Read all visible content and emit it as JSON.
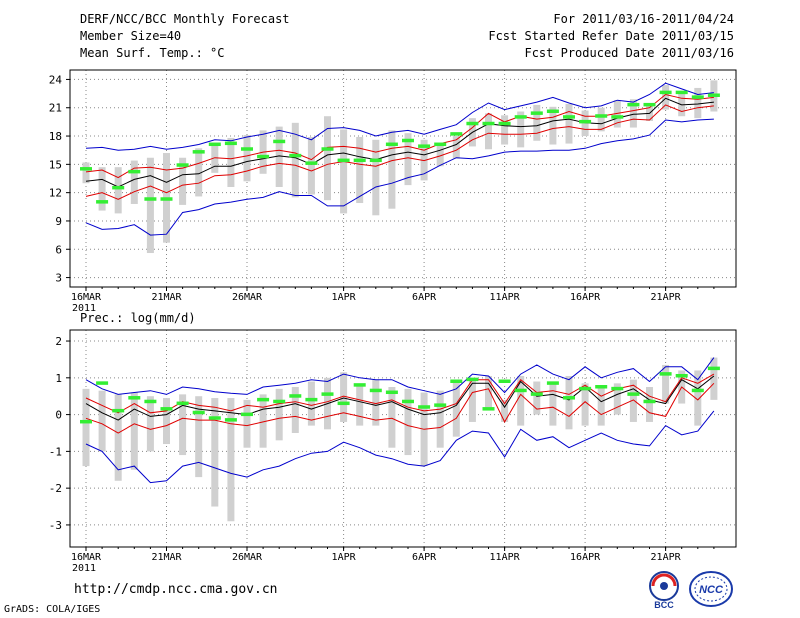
{
  "header": {
    "title": "DERF/NCC/BCC Monthly Forecast",
    "member": "Member Size=40",
    "variable": "Mean Surf. Temp.: °C",
    "period": "For 2011/03/16-2011/04/24",
    "fcst_started": "Fcst Started Refer Date 2011/03/15",
    "fcst_produced": "Fcst Produced Date 2011/03/16"
  },
  "footer": {
    "url": "http://cmdp.ncc.cma.gov.cn",
    "credit": "GrADS: COLA/IGES",
    "logo_left_text": "BCC",
    "logo_right_text": "NCC"
  },
  "colors": {
    "ensemble_mean": "#000000",
    "spread": "#e00000",
    "extreme": "#0000cc",
    "observed": "#33ee33",
    "box": "#d0d0d0",
    "grid": "#888888"
  },
  "chart_data": [
    {
      "type": "line",
      "title": "Mean Surf. Temp.: °C",
      "ylabel": "°C",
      "ylim": [
        2,
        25
      ],
      "yticks": [
        3,
        6,
        9,
        12,
        15,
        18,
        21,
        24
      ],
      "x_tick_labels": [
        "16MAR",
        "21MAR",
        "26MAR",
        "1APR",
        "6APR",
        "11APR",
        "16APR",
        "21APR"
      ],
      "x_tick_index": [
        0,
        5,
        10,
        16,
        21,
        26,
        31,
        36
      ],
      "x_year_label": "2011",
      "days": 40,
      "series": [
        {
          "name": "max",
          "values": [
            16.7,
            16.8,
            16.5,
            16.6,
            16.9,
            16.6,
            16.8,
            17.1,
            17.6,
            17.5,
            17.9,
            18.2,
            18.6,
            18.2,
            17.6,
            18.8,
            18.9,
            18.6,
            18.0,
            18.4,
            18.6,
            18.2,
            18.7,
            19.2,
            20.5,
            21.5,
            20.8,
            21.2,
            21.6,
            22.1,
            21.5,
            21.0,
            21.2,
            21.8,
            21.6,
            22.4,
            23.6,
            23.0,
            22.4,
            22.6
          ]
        },
        {
          "name": "upper",
          "values": [
            14.2,
            14.4,
            13.6,
            14.6,
            14.7,
            14.4,
            14.6,
            15.1,
            15.7,
            15.6,
            15.9,
            16.3,
            16.5,
            16.2,
            15.5,
            16.8,
            16.9,
            16.7,
            16.3,
            16.7,
            16.9,
            16.5,
            17.2,
            17.6,
            18.9,
            20.4,
            19.5,
            20.1,
            19.8,
            20.0,
            20.6,
            20.1,
            20.1,
            20.4,
            20.7,
            21.0,
            22.4,
            22.0,
            21.9,
            22.1
          ]
        },
        {
          "name": "mean",
          "values": [
            13.2,
            13.4,
            12.6,
            13.4,
            13.8,
            13.1,
            13.9,
            14.0,
            14.8,
            14.8,
            15.3,
            15.6,
            15.9,
            15.7,
            15.0,
            16.0,
            16.2,
            15.8,
            15.5,
            16.0,
            16.3,
            16.0,
            16.5,
            17.1,
            18.4,
            19.3,
            19.1,
            19.0,
            19.1,
            19.6,
            19.8,
            19.4,
            19.3,
            19.9,
            20.3,
            20.4,
            22.0,
            21.3,
            21.4,
            21.6
          ]
        },
        {
          "name": "lower",
          "values": [
            11.6,
            12.0,
            11.3,
            12.1,
            12.7,
            12.0,
            12.8,
            13.0,
            13.8,
            13.9,
            14.3,
            14.8,
            15.1,
            14.9,
            14.3,
            15.0,
            15.3,
            15.0,
            14.8,
            15.4,
            15.7,
            15.4,
            15.9,
            16.5,
            17.6,
            18.3,
            18.2,
            18.2,
            18.3,
            18.8,
            19.0,
            18.7,
            18.7,
            19.4,
            19.8,
            19.7,
            21.3,
            20.6,
            21.0,
            21.2
          ]
        },
        {
          "name": "min",
          "values": [
            8.8,
            8.1,
            8.2,
            8.6,
            7.5,
            7.6,
            9.9,
            10.2,
            10.8,
            11.0,
            11.3,
            11.5,
            12.1,
            11.7,
            11.7,
            10.6,
            10.6,
            11.6,
            12.6,
            13.0,
            13.6,
            14.0,
            14.9,
            15.7,
            15.6,
            15.9,
            16.3,
            16.4,
            16.4,
            16.5,
            16.5,
            16.7,
            17.2,
            17.5,
            17.7,
            18.1,
            19.7,
            19.5,
            19.7,
            19.8
          ]
        }
      ],
      "boxes": [
        [
          13.0,
          15.2
        ],
        [
          10.1,
          14.7
        ],
        [
          9.8,
          14.7
        ],
        [
          10.8,
          15.4
        ],
        [
          5.6,
          15.7
        ],
        [
          6.7,
          16.2
        ],
        [
          10.7,
          15.7
        ],
        [
          11.6,
          16.7
        ],
        [
          14.1,
          17.2
        ],
        [
          12.6,
          17.8
        ],
        [
          13.2,
          18.1
        ],
        [
          14.0,
          18.6
        ],
        [
          12.6,
          19.0
        ],
        [
          11.5,
          19.4
        ],
        [
          11.8,
          17.9
        ],
        [
          11.2,
          20.1
        ],
        [
          9.8,
          18.7
        ],
        [
          10.9,
          17.9
        ],
        [
          9.6,
          17.6
        ],
        [
          10.3,
          18.6
        ],
        [
          12.8,
          18.3
        ],
        [
          13.3,
          17.6
        ],
        [
          14.8,
          17.2
        ],
        [
          15.6,
          18.0
        ],
        [
          16.9,
          19.9
        ],
        [
          16.6,
          20.4
        ],
        [
          17.1,
          20.2
        ],
        [
          16.8,
          20.6
        ],
        [
          17.5,
          21.3
        ],
        [
          17.1,
          21.1
        ],
        [
          17.2,
          21.4
        ],
        [
          18.0,
          20.7
        ],
        [
          18.5,
          21.0
        ],
        [
          18.9,
          21.8
        ],
        [
          18.9,
          21.9
        ],
        [
          19.6,
          21.4
        ],
        [
          20.8,
          23.4
        ],
        [
          20.1,
          22.7
        ],
        [
          19.9,
          23.1
        ],
        [
          20.6,
          23.9
        ]
      ],
      "observed": [
        14.5,
        11.0,
        12.5,
        14.2,
        11.3,
        11.3,
        14.9,
        16.3,
        17.1,
        17.2,
        16.6,
        15.8,
        17.4,
        15.9,
        15.1,
        16.6,
        15.4,
        15.4,
        15.4,
        17.1,
        17.5,
        16.9,
        17.1,
        18.2,
        19.3,
        19.3,
        19.3,
        20.0,
        20.4,
        20.6,
        20.0,
        19.5,
        20.1,
        20.0,
        21.3,
        21.3,
        22.6,
        22.6,
        22.1,
        22.3
      ]
    },
    {
      "type": "line",
      "title": "Prec.: log(mm/d)",
      "ylabel": "log(mm/d)",
      "ylim": [
        -3.6,
        2.3
      ],
      "yticks": [
        -3,
        -2,
        -1,
        0,
        1,
        2
      ],
      "x_tick_labels": [
        "16MAR",
        "21MAR",
        "26MAR",
        "1APR",
        "6APR",
        "11APR",
        "16APR",
        "21APR"
      ],
      "x_tick_index": [
        0,
        5,
        10,
        16,
        21,
        26,
        31,
        36
      ],
      "x_year_label": "2011",
      "days": 40,
      "series": [
        {
          "name": "max",
          "values": [
            0.95,
            0.7,
            0.55,
            0.6,
            0.65,
            0.55,
            0.75,
            0.7,
            0.62,
            0.58,
            0.55,
            0.75,
            0.8,
            0.85,
            0.95,
            0.9,
            1.1,
            1.0,
            0.95,
            0.95,
            0.75,
            0.65,
            0.55,
            0.7,
            1.1,
            1.05,
            0.6,
            1.1,
            1.35,
            1.1,
            0.95,
            1.3,
            1.0,
            1.15,
            1.25,
            0.9,
            1.3,
            1.3,
            0.95,
            1.55
          ]
        },
        {
          "name": "upper",
          "values": [
            0.45,
            0.25,
            0.05,
            0.3,
            0.05,
            0.1,
            0.35,
            0.25,
            0.2,
            0.1,
            0.25,
            0.2,
            0.3,
            0.35,
            0.25,
            0.35,
            0.5,
            0.4,
            0.3,
            0.4,
            0.2,
            0.1,
            0.15,
            0.3,
            0.95,
            0.95,
            0.3,
            0.95,
            0.6,
            0.65,
            0.55,
            0.8,
            0.5,
            0.7,
            0.8,
            0.5,
            0.35,
            1.0,
            0.85,
            1.1
          ]
        },
        {
          "name": "mean",
          "values": [
            0.3,
            0.05,
            -0.15,
            0.15,
            -0.05,
            0.0,
            0.25,
            0.15,
            0.1,
            0.05,
            0.0,
            0.15,
            0.2,
            0.3,
            0.15,
            0.3,
            0.45,
            0.35,
            0.25,
            0.35,
            0.15,
            0.0,
            0.05,
            0.25,
            0.85,
            0.85,
            0.2,
            0.9,
            0.5,
            0.55,
            0.4,
            0.75,
            0.35,
            0.55,
            0.7,
            0.4,
            0.3,
            0.95,
            0.7,
            1.05
          ]
        },
        {
          "name": "lower",
          "values": [
            -0.1,
            -0.25,
            -0.5,
            -0.25,
            -0.4,
            -0.3,
            -0.1,
            -0.15,
            -0.15,
            -0.25,
            -0.3,
            -0.2,
            -0.1,
            -0.05,
            -0.15,
            -0.05,
            0.05,
            -0.05,
            -0.15,
            -0.1,
            -0.3,
            -0.4,
            -0.35,
            -0.1,
            0.6,
            0.7,
            -0.2,
            0.55,
            0.15,
            0.2,
            -0.05,
            0.35,
            0.0,
            0.2,
            0.4,
            0.05,
            -0.05,
            0.75,
            0.4,
            0.85
          ]
        },
        {
          "name": "min",
          "values": [
            -0.8,
            -1.0,
            -1.5,
            -1.4,
            -1.85,
            -1.8,
            -1.4,
            -1.3,
            -1.45,
            -1.6,
            -1.7,
            -1.5,
            -1.4,
            -1.2,
            -1.05,
            -1.0,
            -0.75,
            -0.9,
            -1.1,
            -1.2,
            -1.35,
            -1.4,
            -1.25,
            -0.7,
            -0.45,
            -0.5,
            -1.15,
            -0.4,
            -0.7,
            -0.6,
            -0.9,
            -0.7,
            -0.5,
            -0.7,
            -0.8,
            -0.85,
            -0.3,
            -0.55,
            -0.45,
            0.1
          ]
        }
      ],
      "boxes": [
        [
          -1.4,
          0.7
        ],
        [
          -1.0,
          0.65
        ],
        [
          -1.8,
          0.55
        ],
        [
          -1.5,
          0.6
        ],
        [
          -1.0,
          0.5
        ],
        [
          -0.8,
          0.45
        ],
        [
          -1.1,
          0.55
        ],
        [
          -1.7,
          0.5
        ],
        [
          -2.5,
          0.45
        ],
        [
          -2.9,
          0.45
        ],
        [
          -0.9,
          0.4
        ],
        [
          -0.9,
          0.55
        ],
        [
          -0.7,
          0.7
        ],
        [
          -0.5,
          0.75
        ],
        [
          -0.3,
          0.9
        ],
        [
          -0.4,
          1.0
        ],
        [
          -0.2,
          1.15
        ],
        [
          -0.3,
          0.8
        ],
        [
          -0.3,
          0.95
        ],
        [
          -0.9,
          0.75
        ],
        [
          -1.1,
          0.7
        ],
        [
          -1.4,
          0.6
        ],
        [
          -0.9,
          0.65
        ],
        [
          -0.6,
          0.9
        ],
        [
          -0.2,
          1.0
        ],
        [
          0.2,
          1.05
        ],
        [
          -0.2,
          0.4
        ],
        [
          -0.3,
          1.05
        ],
        [
          0.0,
          0.9
        ],
        [
          -0.3,
          0.85
        ],
        [
          -0.4,
          1.05
        ],
        [
          -0.3,
          0.85
        ],
        [
          -0.3,
          0.8
        ],
        [
          0.0,
          0.85
        ],
        [
          -0.2,
          0.95
        ],
        [
          -0.2,
          0.75
        ],
        [
          0.3,
          1.35
        ],
        [
          0.3,
          1.2
        ],
        [
          -0.3,
          1.2
        ],
        [
          0.4,
          1.55
        ]
      ],
      "observed": [
        -0.2,
        0.85,
        0.1,
        0.45,
        0.35,
        0.15,
        0.3,
        0.05,
        -0.1,
        -0.15,
        0.0,
        0.4,
        0.35,
        0.5,
        0.4,
        0.55,
        0.3,
        0.8,
        0.65,
        0.6,
        0.35,
        0.2,
        0.25,
        0.9,
        0.95,
        0.15,
        0.9,
        0.65,
        0.55,
        0.85,
        0.45,
        0.7,
        0.75,
        0.7,
        0.55,
        0.35,
        1.1,
        1.05,
        0.65,
        1.25
      ]
    }
  ]
}
